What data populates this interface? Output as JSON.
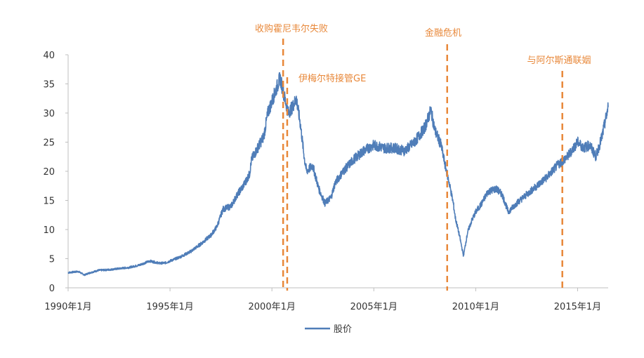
{
  "chart_data": {
    "type": "line",
    "title": "",
    "xlabel": "",
    "ylabel": "",
    "ylim": [
      0,
      40
    ],
    "y_ticks": [
      "0",
      "5",
      "10",
      "15",
      "20",
      "25",
      "30",
      "35",
      "40"
    ],
    "x_ticks": [
      "1990年1月",
      "1995年1月",
      "2000年1月",
      "2005年1月",
      "2010年1月",
      "2015年1月"
    ],
    "x_range": [
      1990.0,
      2016.5
    ],
    "grid": false,
    "legend_position": "bottom",
    "series": [
      {
        "name": "股价",
        "color": "#4f7db8",
        "x": [
          1990.0,
          1990.5,
          1990.8,
          1991.0,
          1991.5,
          1992.0,
          1992.5,
          1993.0,
          1993.5,
          1994.0,
          1994.5,
          1994.8,
          1995.0,
          1995.5,
          1996.0,
          1996.5,
          1997.0,
          1997.3,
          1997.6,
          1998.0,
          1998.3,
          1998.6,
          1998.9,
          1999.0,
          1999.3,
          1999.6,
          1999.8,
          2000.0,
          2000.2,
          2000.4,
          2000.6,
          2000.8,
          2001.0,
          2001.2,
          2001.4,
          2001.6,
          2001.7,
          2002.0,
          2002.3,
          2002.6,
          2002.9,
          2003.1,
          2003.5,
          2004.0,
          2004.5,
          2005.0,
          2005.5,
          2006.0,
          2006.5,
          2007.0,
          2007.3,
          2007.5,
          2007.8,
          2008.0,
          2008.3,
          2008.5,
          2008.7,
          2008.9,
          2009.0,
          2009.2,
          2009.4,
          2009.6,
          2009.8,
          2010.0,
          2010.3,
          2010.6,
          2011.0,
          2011.3,
          2011.6,
          2012.0,
          2012.5,
          2013.0,
          2013.5,
          2014.0,
          2014.5,
          2015.0,
          2015.3,
          2015.6,
          2015.9,
          2016.2,
          2016.5
        ],
        "values": [
          2.6,
          2.8,
          2.2,
          2.5,
          3.0,
          3.1,
          3.3,
          3.5,
          3.9,
          4.6,
          4.2,
          4.3,
          4.6,
          5.3,
          6.2,
          7.5,
          9.0,
          10.5,
          13.5,
          14.0,
          16.0,
          17.5,
          19.5,
          22.0,
          24.0,
          26.0,
          30.0,
          32.0,
          34.0,
          36.0,
          33.0,
          30.0,
          31.0,
          32.5,
          28.0,
          22.0,
          20.0,
          21.0,
          17.0,
          14.5,
          15.5,
          18.0,
          20.0,
          22.0,
          23.5,
          24.5,
          24.0,
          24.0,
          23.5,
          25.0,
          26.5,
          27.5,
          30.5,
          27.0,
          24.5,
          21.0,
          18.0,
          14.5,
          12.0,
          9.0,
          5.5,
          9.5,
          11.5,
          13.0,
          14.5,
          16.5,
          17.0,
          16.0,
          13.0,
          14.5,
          16.0,
          17.5,
          19.0,
          21.0,
          22.5,
          25.0,
          24.0,
          24.5,
          22.5,
          26.0,
          31.0
        ]
      }
    ],
    "annotations": [
      {
        "label": "收购霍尼韦尔失败",
        "x": 2000.55
      },
      {
        "label": "伊梅尔特接管GE",
        "x": 2000.75
      },
      {
        "label": "金融危机",
        "x": 2008.6
      },
      {
        "label": "与阿尔斯通联姻",
        "x": 2014.25
      }
    ],
    "annotation_color": "#e8883a"
  }
}
